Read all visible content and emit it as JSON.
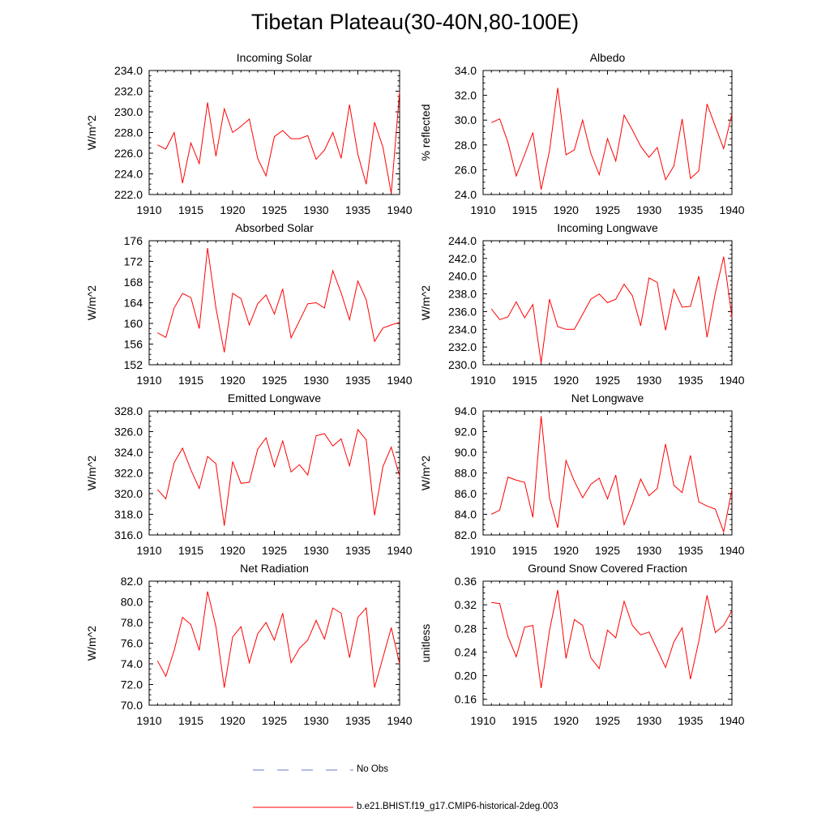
{
  "page": {
    "title": "Tibetan Plateau(30-40N,80-100E)"
  },
  "legend": {
    "items": [
      {
        "label": "No Obs",
        "color": "#6b78c8",
        "style": "dashed"
      },
      {
        "label": "b.e21.BHIST.f19_g17.CMIP6-historical-2deg.003",
        "color": "#ff0000",
        "style": "solid"
      }
    ]
  },
  "chart_data": [
    {
      "type": "line",
      "title": "Incoming Solar",
      "ylabel": "W/m^2",
      "xlim": [
        1910,
        1940
      ],
      "ylim": [
        222.0,
        234.0
      ],
      "xticks": [
        "1910",
        "1915",
        "1920",
        "1925",
        "1930",
        "1935",
        "1940"
      ],
      "yticks": [
        "222.0",
        "224.0",
        "226.0",
        "228.0",
        "230.0",
        "232.0",
        "234.0"
      ],
      "x": [
        1911,
        1912,
        1913,
        1914,
        1915,
        1916,
        1917,
        1918,
        1919,
        1920,
        1921,
        1922,
        1923,
        1924,
        1925,
        1926,
        1927,
        1928,
        1929,
        1930,
        1931,
        1932,
        1933,
        1934,
        1935,
        1936,
        1937,
        1938,
        1939,
        1940
      ],
      "series": [
        {
          "color": "#ff0000",
          "values": [
            226.8,
            226.4,
            228.0,
            223.1,
            227.0,
            225.0,
            230.9,
            225.7,
            230.3,
            228.0,
            228.6,
            229.3,
            225.5,
            223.8,
            227.6,
            228.2,
            227.4,
            227.4,
            227.7,
            225.4,
            226.3,
            228.0,
            225.5,
            230.7,
            225.9,
            223.0,
            229.0,
            226.6,
            222.1,
            232.0
          ]
        }
      ]
    },
    {
      "type": "line",
      "title": "Albedo",
      "ylabel": "% reflected",
      "xlim": [
        1910,
        1940
      ],
      "ylim": [
        24.0,
        34.0
      ],
      "xticks": [
        "1910",
        "1915",
        "1920",
        "1925",
        "1930",
        "1935",
        "1940"
      ],
      "yticks": [
        "24.0",
        "26.0",
        "28.0",
        "30.0",
        "32.0",
        "34.0"
      ],
      "x": [
        1911,
        1912,
        1913,
        1914,
        1915,
        1916,
        1917,
        1918,
        1919,
        1920,
        1921,
        1922,
        1923,
        1924,
        1925,
        1926,
        1927,
        1928,
        1929,
        1930,
        1931,
        1932,
        1933,
        1934,
        1935,
        1936,
        1937,
        1938,
        1939,
        1940
      ],
      "series": [
        {
          "color": "#ff0000",
          "values": [
            29.8,
            30.1,
            28.2,
            25.5,
            27.2,
            29.0,
            24.4,
            27.5,
            32.6,
            27.2,
            27.6,
            30.0,
            27.3,
            25.6,
            28.5,
            26.7,
            30.4,
            29.2,
            27.9,
            27.0,
            27.8,
            25.2,
            26.3,
            30.1,
            25.3,
            25.9,
            31.3,
            29.5,
            27.7,
            30.5
          ]
        }
      ]
    },
    {
      "type": "line",
      "title": "Absorbed Solar",
      "ylabel": "W/m^2",
      "xlim": [
        1910,
        1940
      ],
      "ylim": [
        152,
        176
      ],
      "xticks": [
        "1910",
        "1915",
        "1920",
        "1925",
        "1930",
        "1935",
        "1940"
      ],
      "yticks": [
        "152",
        "156",
        "160",
        "164",
        "168",
        "172",
        "176"
      ],
      "x": [
        1911,
        1912,
        1913,
        1914,
        1915,
        1916,
        1917,
        1918,
        1919,
        1920,
        1921,
        1922,
        1923,
        1924,
        1925,
        1926,
        1927,
        1928,
        1929,
        1930,
        1931,
        1932,
        1933,
        1934,
        1935,
        1936,
        1937,
        1938,
        1939,
        1940
      ],
      "series": [
        {
          "color": "#ff0000",
          "values": [
            158.2,
            157.3,
            163.0,
            165.8,
            165.0,
            159.0,
            174.6,
            163.0,
            154.4,
            165.8,
            164.8,
            159.7,
            163.8,
            165.5,
            161.8,
            166.7,
            157.2,
            160.5,
            163.8,
            164.0,
            163.0,
            170.2,
            165.9,
            160.7,
            168.2,
            164.6,
            156.5,
            159.1,
            159.7,
            160.2
          ]
        }
      ]
    },
    {
      "type": "line",
      "title": "Incoming Longwave",
      "ylabel": "W/m^2",
      "xlim": [
        1910,
        1940
      ],
      "ylim": [
        230.0,
        244.0
      ],
      "xticks": [
        "1910",
        "1915",
        "1920",
        "1925",
        "1930",
        "1935",
        "1940"
      ],
      "yticks": [
        "230.0",
        "232.0",
        "234.0",
        "236.0",
        "238.0",
        "240.0",
        "242.0",
        "244.0"
      ],
      "x": [
        1911,
        1912,
        1913,
        1914,
        1915,
        1916,
        1917,
        1918,
        1919,
        1920,
        1921,
        1922,
        1923,
        1924,
        1925,
        1926,
        1927,
        1928,
        1929,
        1930,
        1931,
        1932,
        1933,
        1934,
        1935,
        1936,
        1937,
        1938,
        1939,
        1940
      ],
      "series": [
        {
          "color": "#ff0000",
          "values": [
            236.3,
            235.1,
            235.4,
            237.1,
            235.3,
            236.8,
            230.2,
            237.4,
            234.3,
            234.0,
            234.0,
            235.7,
            237.4,
            238.0,
            237.0,
            237.4,
            239.1,
            237.8,
            234.4,
            239.8,
            239.3,
            233.9,
            238.5,
            236.5,
            236.6,
            240.0,
            233.1,
            238.1,
            242.2,
            235.4
          ]
        }
      ]
    },
    {
      "type": "line",
      "title": "Emitted Longwave",
      "ylabel": "W/m^2",
      "xlim": [
        1910,
        1940
      ],
      "ylim": [
        316.0,
        328.0
      ],
      "xticks": [
        "1910",
        "1915",
        "1920",
        "1925",
        "1930",
        "1935",
        "1940"
      ],
      "yticks": [
        "316.0",
        "318.0",
        "320.0",
        "322.0",
        "324.0",
        "326.0",
        "328.0"
      ],
      "x": [
        1911,
        1912,
        1913,
        1914,
        1915,
        1916,
        1917,
        1918,
        1919,
        1920,
        1921,
        1922,
        1923,
        1924,
        1925,
        1926,
        1927,
        1928,
        1929,
        1930,
        1931,
        1932,
        1933,
        1934,
        1935,
        1936,
        1937,
        1938,
        1939,
        1940
      ],
      "series": [
        {
          "color": "#ff0000",
          "values": [
            320.4,
            319.5,
            323.0,
            324.4,
            322.3,
            320.5,
            323.6,
            322.9,
            316.9,
            323.1,
            321.0,
            321.1,
            324.3,
            325.4,
            322.6,
            325.1,
            322.1,
            322.8,
            321.8,
            325.6,
            325.8,
            324.6,
            325.3,
            322.7,
            326.2,
            325.2,
            317.9,
            322.6,
            324.5,
            321.7
          ]
        }
      ]
    },
    {
      "type": "line",
      "title": "Net Longwave",
      "ylabel": "W/m^2",
      "xlim": [
        1910,
        1940
      ],
      "ylim": [
        82.0,
        94.0
      ],
      "xticks": [
        "1910",
        "1915",
        "1920",
        "1925",
        "1930",
        "1935",
        "1940"
      ],
      "yticks": [
        "82.0",
        "84.0",
        "86.0",
        "88.0",
        "90.0",
        "92.0",
        "94.0"
      ],
      "x": [
        1911,
        1912,
        1913,
        1914,
        1915,
        1916,
        1917,
        1918,
        1919,
        1920,
        1921,
        1922,
        1923,
        1924,
        1925,
        1926,
        1927,
        1928,
        1929,
        1930,
        1931,
        1932,
        1933,
        1934,
        1935,
        1936,
        1937,
        1938,
        1939,
        1940
      ],
      "series": [
        {
          "color": "#ff0000",
          "values": [
            84.0,
            84.4,
            87.6,
            87.3,
            87.1,
            83.7,
            93.5,
            85.6,
            82.7,
            89.2,
            87.2,
            85.6,
            86.9,
            87.5,
            85.5,
            87.8,
            83.0,
            85.0,
            87.4,
            85.8,
            86.5,
            90.8,
            86.8,
            86.1,
            89.7,
            85.2,
            84.8,
            84.5,
            82.3,
            86.4
          ]
        }
      ]
    },
    {
      "type": "line",
      "title": "Net Radiation",
      "ylabel": "W/m^2",
      "xlim": [
        1910,
        1940
      ],
      "ylim": [
        70.0,
        82.0
      ],
      "xticks": [
        "1910",
        "1915",
        "1920",
        "1925",
        "1930",
        "1935",
        "1940"
      ],
      "yticks": [
        "70.0",
        "72.0",
        "74.0",
        "76.0",
        "78.0",
        "80.0",
        "82.0"
      ],
      "x": [
        1911,
        1912,
        1913,
        1914,
        1915,
        1916,
        1917,
        1918,
        1919,
        1920,
        1921,
        1922,
        1923,
        1924,
        1925,
        1926,
        1927,
        1928,
        1929,
        1930,
        1931,
        1932,
        1933,
        1934,
        1935,
        1936,
        1937,
        1938,
        1939,
        1940
      ],
      "series": [
        {
          "color": "#ff0000",
          "values": [
            74.3,
            72.8,
            75.3,
            78.5,
            77.8,
            75.3,
            81.0,
            77.6,
            71.7,
            76.6,
            77.6,
            74.1,
            76.9,
            78.0,
            76.3,
            78.9,
            74.1,
            75.5,
            76.3,
            78.2,
            76.4,
            79.4,
            78.9,
            74.6,
            78.5,
            79.4,
            71.7,
            74.6,
            77.5,
            74.0
          ]
        }
      ]
    },
    {
      "type": "line",
      "title": "Ground Snow Covered Fraction",
      "ylabel": "unitless",
      "xlim": [
        1910,
        1940
      ],
      "ylim": [
        0.15,
        0.36
      ],
      "xticks": [
        "1910",
        "1915",
        "1920",
        "1925",
        "1930",
        "1935",
        "1940"
      ],
      "yticks": [
        "0.16",
        "0.20",
        "0.24",
        "0.28",
        "0.32",
        "0.36"
      ],
      "x": [
        1911,
        1912,
        1913,
        1914,
        1915,
        1916,
        1917,
        1918,
        1919,
        1920,
        1921,
        1922,
        1923,
        1924,
        1925,
        1926,
        1927,
        1928,
        1929,
        1930,
        1931,
        1932,
        1933,
        1934,
        1935,
        1936,
        1937,
        1938,
        1939,
        1940
      ],
      "series": [
        {
          "color": "#ff0000",
          "values": [
            0.324,
            0.322,
            0.266,
            0.232,
            0.282,
            0.285,
            0.179,
            0.276,
            0.345,
            0.229,
            0.295,
            0.285,
            0.23,
            0.212,
            0.277,
            0.264,
            0.326,
            0.285,
            0.269,
            0.274,
            0.244,
            0.214,
            0.257,
            0.281,
            0.194,
            0.258,
            0.336,
            0.273,
            0.285,
            0.31
          ]
        }
      ]
    }
  ]
}
